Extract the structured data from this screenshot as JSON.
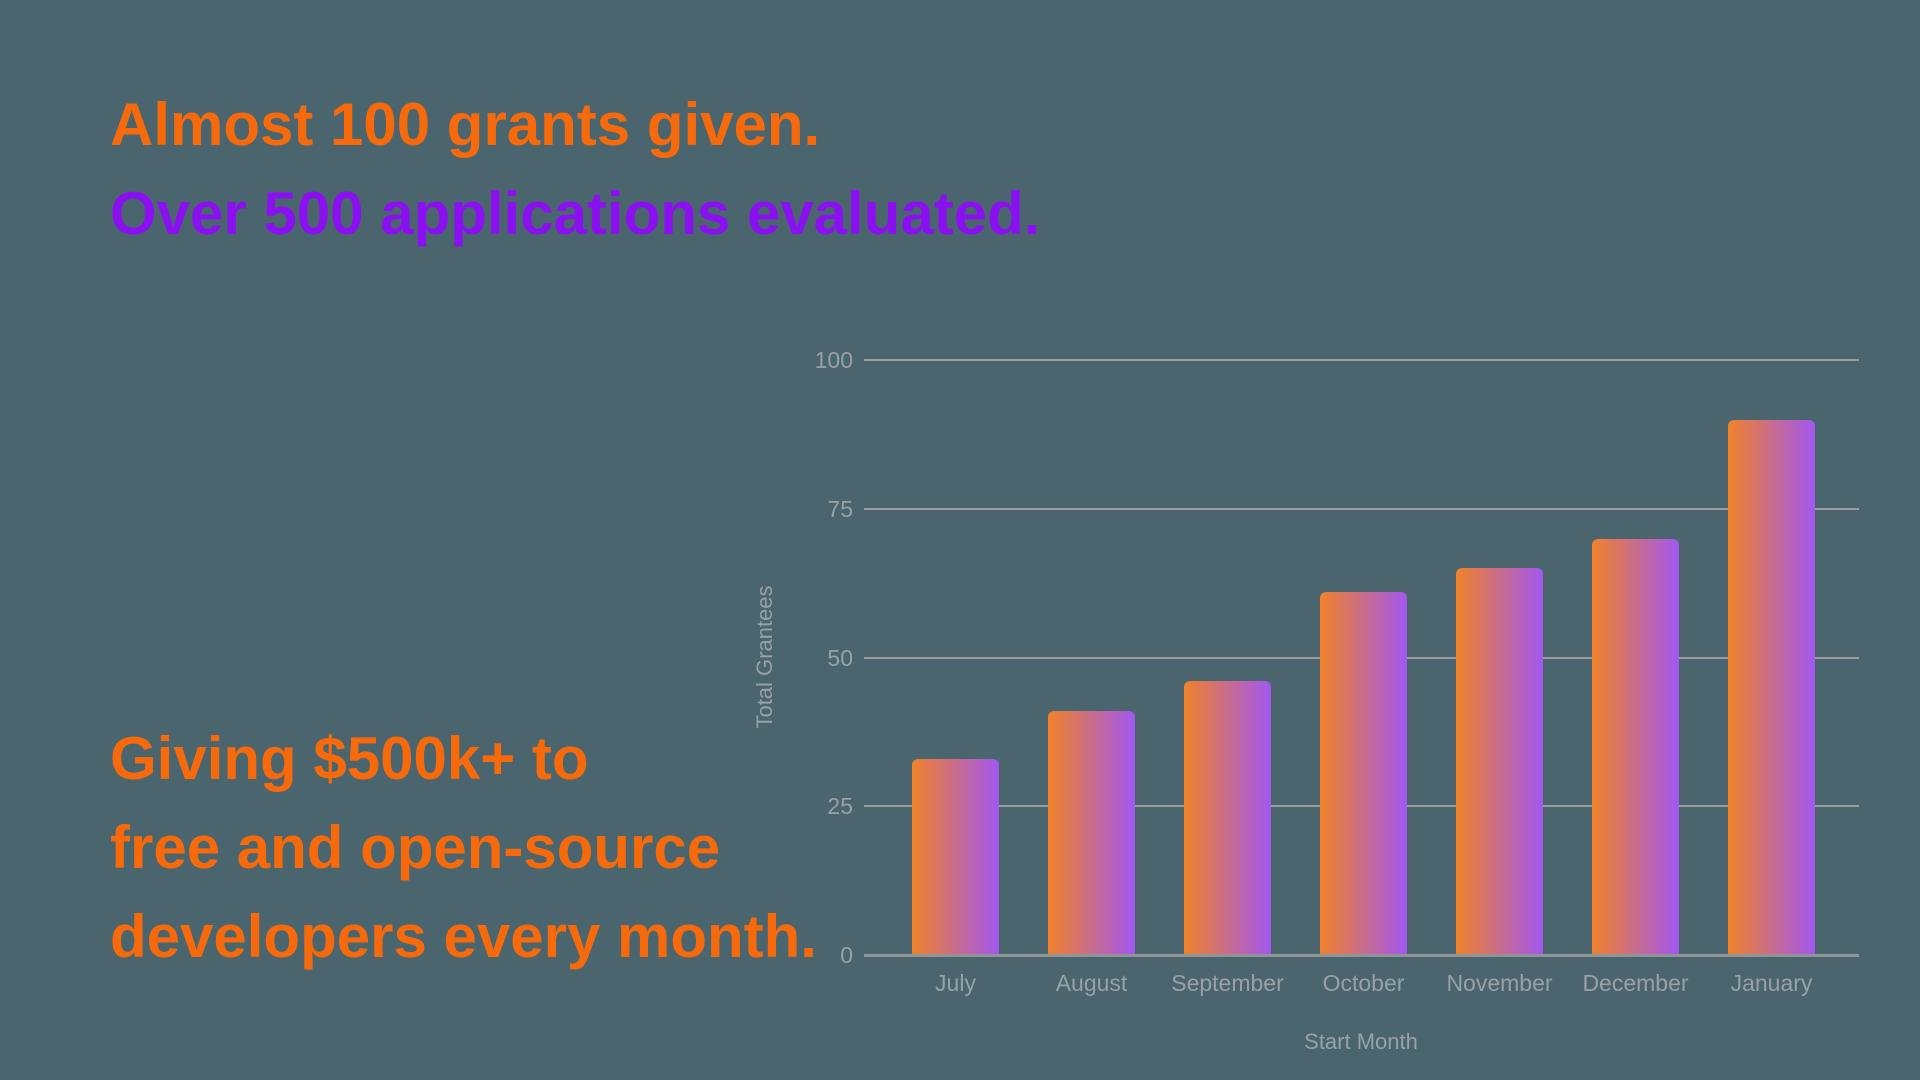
{
  "hero": {
    "line1": "Almost 100 grants given.",
    "line2": "Over 500 applications evaluated."
  },
  "footer_text": {
    "line1": "Giving $500k+ to",
    "line2": "free and open-source",
    "line3": "developers every month."
  },
  "colors": {
    "background": "#4b656e",
    "orange": "#f76a0c",
    "purple": "#8a10f2",
    "gridline": "#9b9ea0",
    "axis_line": "#8f9496",
    "axis_text": "#98a1a4",
    "bar_gradient_start": "#f0822a",
    "bar_gradient_end": "#a257f0"
  },
  "chart_data": {
    "type": "bar",
    "categories": [
      "July",
      "August",
      "September",
      "October",
      "November",
      "December",
      "January"
    ],
    "values": [
      33,
      41,
      46,
      61,
      65,
      70,
      90
    ],
    "title": "",
    "xlabel": "Start Month",
    "ylabel": "Total Grantees",
    "yticks": [
      0,
      25,
      50,
      75,
      100
    ],
    "ylim": [
      0,
      100
    ],
    "grid": true,
    "legend": false,
    "bar_gradient": [
      "#f0822a",
      "#a257f0"
    ]
  }
}
